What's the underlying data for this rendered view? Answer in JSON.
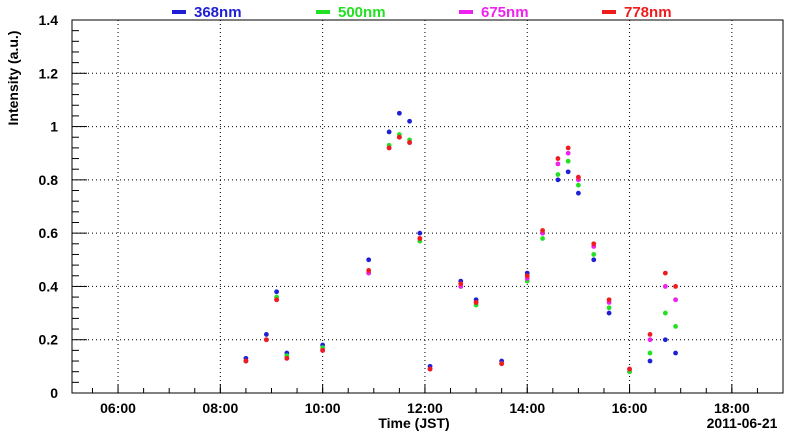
{
  "chart_data": {
    "type": "scatter",
    "title": "",
    "xlabel": "Time (JST)",
    "ylabel": "Intensity (a.u.)",
    "date_label": "2011-06-21",
    "x_unit": "hours (JST)",
    "xlim": [
      5.1,
      19.0
    ],
    "ylim": [
      0,
      1.4
    ],
    "grid": true,
    "legend_position": "top",
    "x_ticks": [
      {
        "value": 6,
        "label": "06:00"
      },
      {
        "value": 8,
        "label": "08:00"
      },
      {
        "value": 10,
        "label": "10:00"
      },
      {
        "value": 12,
        "label": "12:00"
      },
      {
        "value": 14,
        "label": "14:00"
      },
      {
        "value": 16,
        "label": "16:00"
      },
      {
        "value": 18,
        "label": "18:00"
      }
    ],
    "y_ticks": [
      {
        "value": 0,
        "label": "0"
      },
      {
        "value": 0.2,
        "label": "0.2"
      },
      {
        "value": 0.4,
        "label": "0.4"
      },
      {
        "value": 0.6,
        "label": "0.6"
      },
      {
        "value": 0.8,
        "label": "0.8"
      },
      {
        "value": 1.0,
        "label": "1"
      },
      {
        "value": 1.2,
        "label": "1.2"
      },
      {
        "value": 1.4,
        "label": "1.4"
      }
    ],
    "series": [
      {
        "name": "368nm",
        "color": "#1f1fd6",
        "points": [
          [
            8.5,
            0.13
          ],
          [
            8.9,
            0.22
          ],
          [
            9.1,
            0.38
          ],
          [
            9.3,
            0.15
          ],
          [
            10.0,
            0.18
          ],
          [
            10.9,
            0.5
          ],
          [
            11.3,
            0.98
          ],
          [
            11.5,
            1.05
          ],
          [
            11.7,
            1.02
          ],
          [
            11.9,
            0.6
          ],
          [
            12.1,
            0.1
          ],
          [
            12.7,
            0.42
          ],
          [
            13.0,
            0.35
          ],
          [
            13.5,
            0.12
          ],
          [
            14.0,
            0.45
          ],
          [
            14.3,
            0.6
          ],
          [
            14.6,
            0.8
          ],
          [
            14.8,
            0.83
          ],
          [
            15.0,
            0.75
          ],
          [
            15.3,
            0.5
          ],
          [
            15.6,
            0.3
          ],
          [
            16.0,
            0.08
          ],
          [
            16.4,
            0.12
          ],
          [
            16.7,
            0.2
          ],
          [
            16.9,
            0.15
          ]
        ]
      },
      {
        "name": "500nm",
        "color": "#22e022",
        "points": [
          [
            8.5,
            0.12
          ],
          [
            8.9,
            0.2
          ],
          [
            9.1,
            0.36
          ],
          [
            9.3,
            0.14
          ],
          [
            10.0,
            0.17
          ],
          [
            10.9,
            0.45
          ],
          [
            11.3,
            0.93
          ],
          [
            11.5,
            0.97
          ],
          [
            11.7,
            0.95
          ],
          [
            11.9,
            0.57
          ],
          [
            12.1,
            0.09
          ],
          [
            12.7,
            0.4
          ],
          [
            13.0,
            0.33
          ],
          [
            13.5,
            0.11
          ],
          [
            14.0,
            0.42
          ],
          [
            14.3,
            0.58
          ],
          [
            14.6,
            0.82
          ],
          [
            14.8,
            0.87
          ],
          [
            15.0,
            0.78
          ],
          [
            15.3,
            0.52
          ],
          [
            15.6,
            0.32
          ],
          [
            16.0,
            0.08
          ],
          [
            16.4,
            0.15
          ],
          [
            16.7,
            0.3
          ],
          [
            16.9,
            0.25
          ]
        ]
      },
      {
        "name": "675nm",
        "color": "#ee22ee",
        "points": [
          [
            8.5,
            0.12
          ],
          [
            8.9,
            0.2
          ],
          [
            9.1,
            0.35
          ],
          [
            9.3,
            0.13
          ],
          [
            10.0,
            0.16
          ],
          [
            10.9,
            0.45
          ],
          [
            11.3,
            0.92
          ],
          [
            11.5,
            0.96
          ],
          [
            11.7,
            0.94
          ],
          [
            11.9,
            0.58
          ],
          [
            12.1,
            0.09
          ],
          [
            12.7,
            0.4
          ],
          [
            13.0,
            0.34
          ],
          [
            13.5,
            0.11
          ],
          [
            14.0,
            0.43
          ],
          [
            14.3,
            0.6
          ],
          [
            14.6,
            0.86
          ],
          [
            14.8,
            0.9
          ],
          [
            15.0,
            0.8
          ],
          [
            15.3,
            0.55
          ],
          [
            15.6,
            0.34
          ],
          [
            16.0,
            0.09
          ],
          [
            16.4,
            0.2
          ],
          [
            16.7,
            0.4
          ],
          [
            16.9,
            0.35
          ]
        ]
      },
      {
        "name": "778nm",
        "color": "#ee1c1c",
        "points": [
          [
            8.5,
            0.12
          ],
          [
            8.9,
            0.2
          ],
          [
            9.1,
            0.35
          ],
          [
            9.3,
            0.13
          ],
          [
            10.0,
            0.16
          ],
          [
            10.9,
            0.46
          ],
          [
            11.3,
            0.92
          ],
          [
            11.5,
            0.96
          ],
          [
            11.7,
            0.94
          ],
          [
            11.9,
            0.58
          ],
          [
            12.1,
            0.09
          ],
          [
            12.7,
            0.41
          ],
          [
            13.0,
            0.34
          ],
          [
            13.5,
            0.11
          ],
          [
            14.0,
            0.44
          ],
          [
            14.3,
            0.61
          ],
          [
            14.6,
            0.88
          ],
          [
            14.8,
            0.92
          ],
          [
            15.0,
            0.81
          ],
          [
            15.3,
            0.56
          ],
          [
            15.6,
            0.35
          ],
          [
            16.0,
            0.09
          ],
          [
            16.4,
            0.22
          ],
          [
            16.7,
            0.45
          ],
          [
            16.9,
            0.4
          ]
        ]
      }
    ]
  }
}
